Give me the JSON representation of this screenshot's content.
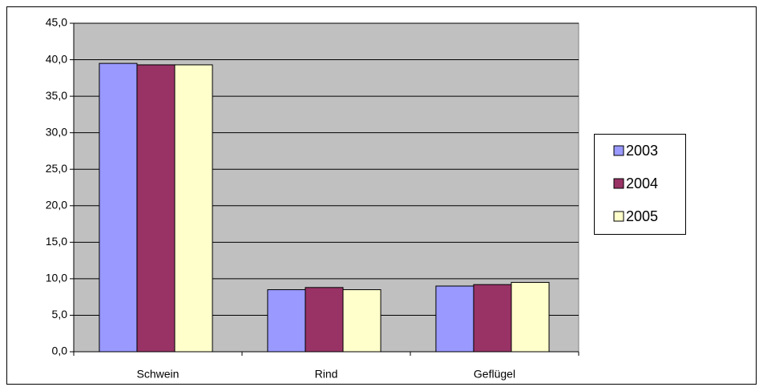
{
  "chart_data": {
    "type": "bar",
    "categories": [
      "Schwein",
      "Rind",
      "Geflügel"
    ],
    "series": [
      {
        "name": "2003",
        "color": "#9999ff",
        "values": [
          39.5,
          8.5,
          9.0
        ]
      },
      {
        "name": "2004",
        "color": "#993366",
        "values": [
          39.3,
          8.8,
          9.2
        ]
      },
      {
        "name": "2005",
        "color": "#ffffcc",
        "values": [
          39.3,
          8.5,
          9.5
        ]
      }
    ],
    "ylim": [
      0,
      45
    ],
    "yticks": [
      {
        "value": 0,
        "label": "0,0"
      },
      {
        "value": 5,
        "label": "5,0"
      },
      {
        "value": 10,
        "label": "10,0"
      },
      {
        "value": 15,
        "label": "15,0"
      },
      {
        "value": 20,
        "label": "20,0"
      },
      {
        "value": 25,
        "label": "25,0"
      },
      {
        "value": 30,
        "label": "30,0"
      },
      {
        "value": 35,
        "label": "35,0"
      },
      {
        "value": 40,
        "label": "40,0"
      },
      {
        "value": 45,
        "label": "45,0"
      }
    ],
    "grid": true,
    "legend": "right"
  }
}
